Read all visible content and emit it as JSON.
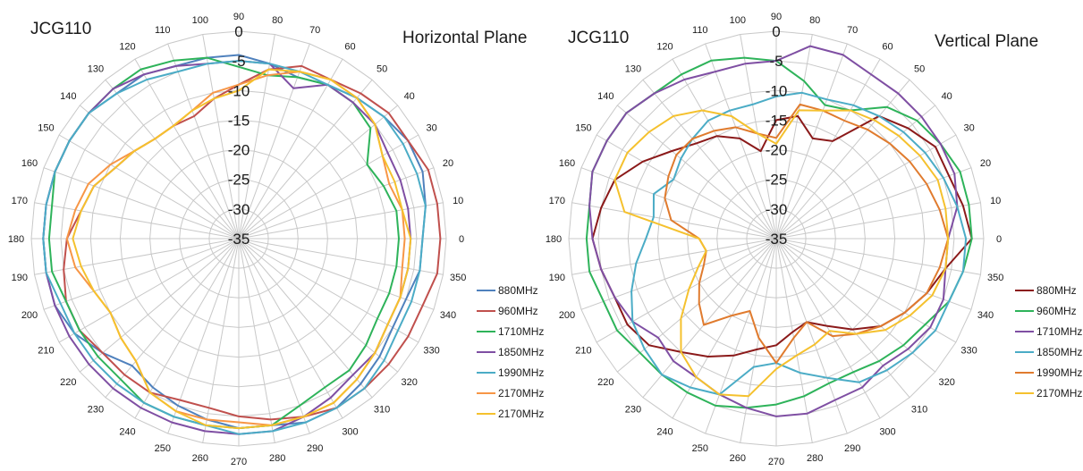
{
  "chart_data": [
    {
      "type": "polar-line",
      "model": "JCG110",
      "plane": "Horizontal Plane",
      "r_range": [
        -35,
        0
      ],
      "r_ticks": [
        "0",
        "-5",
        "-10",
        "-15",
        "-20",
        "-25",
        "-30",
        "-35"
      ],
      "angle_step_deg": 10,
      "angle_labels": [
        "0",
        "10",
        "20",
        "30",
        "40",
        "50",
        "60",
        "70",
        "80",
        "90",
        "100",
        "110",
        "120",
        "130",
        "140",
        "150",
        "160",
        "170",
        "180",
        "190",
        "200",
        "210",
        "220",
        "230",
        "240",
        "250",
        "260",
        "270",
        "280",
        "290",
        "300",
        "310",
        "320",
        "330",
        "340",
        "350"
      ],
      "legend_position": "right",
      "series": [
        {
          "name": "880MHz",
          "color": "#4f81bd",
          "values": [
            -4,
            -3,
            -2,
            -2,
            -3,
            -4,
            -5,
            -6,
            -5,
            -4,
            -4,
            -4,
            -3,
            -3,
            -2,
            -2,
            -2,
            -2,
            -2,
            -2,
            -2,
            -3,
            -5,
            -7,
            -6,
            -5,
            -4,
            -3,
            -3,
            -2,
            -2,
            -3,
            -4,
            -5,
            -5,
            -4
          ]
        },
        {
          "name": "960MHz",
          "color": "#c0504d",
          "values": [
            -1,
            -1,
            -1,
            -2,
            -2,
            -3,
            -4,
            -4,
            -6,
            -9,
            -11,
            -13,
            -13,
            -13,
            -12,
            -11,
            -9,
            -8,
            -6,
            -5,
            -4,
            -4,
            -5,
            -5,
            -5,
            -6,
            -6,
            -5,
            -4,
            -3,
            -2,
            -2,
            -2,
            -2,
            -2,
            -1
          ]
        },
        {
          "name": "1710MHz",
          "color": "#2eb35a",
          "values": [
            -8,
            -8,
            -9,
            -10,
            -6,
            -5,
            -5,
            -6,
            -7,
            -6,
            -4,
            -3,
            -2,
            -2,
            -2,
            -2,
            -2,
            -3,
            -3,
            -3,
            -4,
            -4,
            -4,
            -4,
            -3,
            -3,
            -3,
            -3,
            -3,
            -5,
            -6,
            -6,
            -7,
            -8,
            -8,
            -8
          ]
        },
        {
          "name": "1850MHz",
          "color": "#7f4fa3",
          "values": [
            -6,
            -6,
            -6,
            -6,
            -5,
            -5,
            -5,
            -8,
            -5,
            -5,
            -5,
            -4,
            -3,
            -2,
            -2,
            -2,
            -2,
            -2,
            -2,
            -2,
            -2,
            -2,
            -2,
            -2,
            -2,
            -2,
            -2,
            -2,
            -2,
            -3,
            -4,
            -5,
            -5,
            -6,
            -6,
            -6
          ]
        },
        {
          "name": "1990MHz",
          "color": "#4bacc6",
          "values": [
            -4,
            -3,
            -3,
            -3,
            -3,
            -4,
            -5,
            -5,
            -5,
            -5,
            -5,
            -5,
            -4,
            -3,
            -2,
            -2,
            -2,
            -2,
            -2,
            -2,
            -3,
            -3,
            -3,
            -3,
            -3,
            -3,
            -3,
            -2,
            -2,
            -2,
            -2,
            -2,
            -3,
            -4,
            -4,
            -4
          ]
        },
        {
          "name": "2170MHz",
          "color": "#f79646",
          "values": [
            -7,
            -7,
            -8,
            -7,
            -5,
            -4,
            -4,
            -5,
            -7,
            -9,
            -10,
            -12,
            -13,
            -13,
            -12,
            -10,
            -8,
            -7,
            -6,
            -7,
            -9,
            -10,
            -9,
            -8,
            -5,
            -4,
            -4,
            -4,
            -3,
            -3,
            -3,
            -4,
            -5,
            -6,
            -6,
            -7
          ]
        },
        {
          "name": "2170MHz",
          "color": "#f5c12e",
          "values": [
            -6,
            -7,
            -7,
            -7,
            -5,
            -4,
            -4,
            -5,
            -6,
            -10,
            -11,
            -12,
            -13,
            -13,
            -12,
            -11,
            -9,
            -8,
            -7,
            -8,
            -9,
            -10,
            -9,
            -8,
            -5,
            -4,
            -3,
            -3,
            -3,
            -3,
            -3,
            -4,
            -5,
            -6,
            -6,
            -6
          ]
        }
      ]
    },
    {
      "type": "polar-line",
      "model": "JCG110",
      "plane": "Vertical Plane",
      "r_range": [
        -35,
        0
      ],
      "r_ticks": [
        "0",
        "-5",
        "-10",
        "-15",
        "-20",
        "-25",
        "-30",
        "-35"
      ],
      "angle_step_deg": 10,
      "angle_labels": [
        "0",
        "10",
        "20",
        "30",
        "40",
        "50",
        "60",
        "70",
        "80",
        "90",
        "100",
        "110",
        "120",
        "130",
        "140",
        "150",
        "160",
        "170",
        "180",
        "190",
        "200",
        "210",
        "220",
        "230",
        "240",
        "250",
        "260",
        "270",
        "280",
        "290",
        "300",
        "310",
        "320",
        "330",
        "340",
        "350"
      ],
      "legend_position": "right",
      "series": [
        {
          "name": "880MHz",
          "color": "#8b1a1a",
          "values": [
            -2,
            -3,
            -4,
            -4,
            -6,
            -8,
            -16,
            -17,
            -14,
            -15,
            -20,
            -17,
            -15,
            -14,
            -12,
            -9,
            -6,
            -5,
            -4,
            -5,
            -6,
            -6,
            -7,
            -10,
            -12,
            -14,
            -16,
            -17,
            -19,
            -20,
            -18,
            -15,
            -12,
            -10,
            -8,
            -6
          ]
        },
        {
          "name": "960MHz",
          "color": "#2eb35a",
          "values": [
            -2,
            -2,
            -2,
            -3,
            -4,
            -6,
            -10,
            -11,
            -8,
            -5,
            -4,
            -3,
            -3,
            -3,
            -2,
            -2,
            -2,
            -3,
            -3,
            -3,
            -4,
            -4,
            -5,
            -5,
            -5,
            -5,
            -6,
            -7,
            -8,
            -9,
            -9,
            -8,
            -7,
            -6,
            -4,
            -3
          ]
        },
        {
          "name": "1710MHz",
          "color": "#7f4fa3",
          "values": [
            -6,
            -4,
            -3,
            -3,
            -3,
            -3,
            -3,
            -2,
            -2,
            -5,
            -5,
            -5,
            -4,
            -3,
            -2,
            -2,
            -2,
            -3,
            -4,
            -5,
            -6,
            -7,
            -9,
            -8,
            -8,
            -7,
            -6,
            -5,
            -5,
            -6,
            -6,
            -7,
            -6,
            -5,
            -5,
            -6
          ]
        },
        {
          "name": "1850MHz",
          "color": "#4bacc6",
          "values": [
            -3,
            -4,
            -5,
            -6,
            -7,
            -8,
            -9,
            -10,
            -10,
            -11,
            -12,
            -12,
            -12,
            -13,
            -14,
            -15,
            -13,
            -14,
            -13,
            -11,
            -9,
            -7,
            -6,
            -5,
            -6,
            -7,
            -13,
            -14,
            -12,
            -10,
            -7,
            -6,
            -5,
            -4,
            -4,
            -3
          ]
        },
        {
          "name": "1990MHz",
          "color": "#e07b2e",
          "values": [
            -6,
            -7,
            -8,
            -9,
            -10,
            -11,
            -12,
            -12,
            -12,
            -18,
            -17,
            -15,
            -14,
            -13,
            -13,
            -14,
            -15,
            -17,
            -22,
            -23,
            -22,
            -20,
            -18,
            -16,
            -20,
            -22,
            -18,
            -14,
            -18,
            -20,
            -16,
            -14,
            -12,
            -10,
            -8,
            -7
          ]
        },
        {
          "name": "2170MHz",
          "color": "#f5c12e",
          "values": [
            -6,
            -6,
            -6,
            -7,
            -8,
            -9,
            -10,
            -12,
            -13,
            -19,
            -17,
            -13,
            -10,
            -8,
            -7,
            -6,
            -6,
            -9,
            -22,
            -23,
            -21,
            -18,
            -14,
            -10,
            -8,
            -7,
            -8,
            -13,
            -15,
            -16,
            -17,
            -14,
            -11,
            -9,
            -7,
            -6
          ]
        }
      ]
    }
  ]
}
